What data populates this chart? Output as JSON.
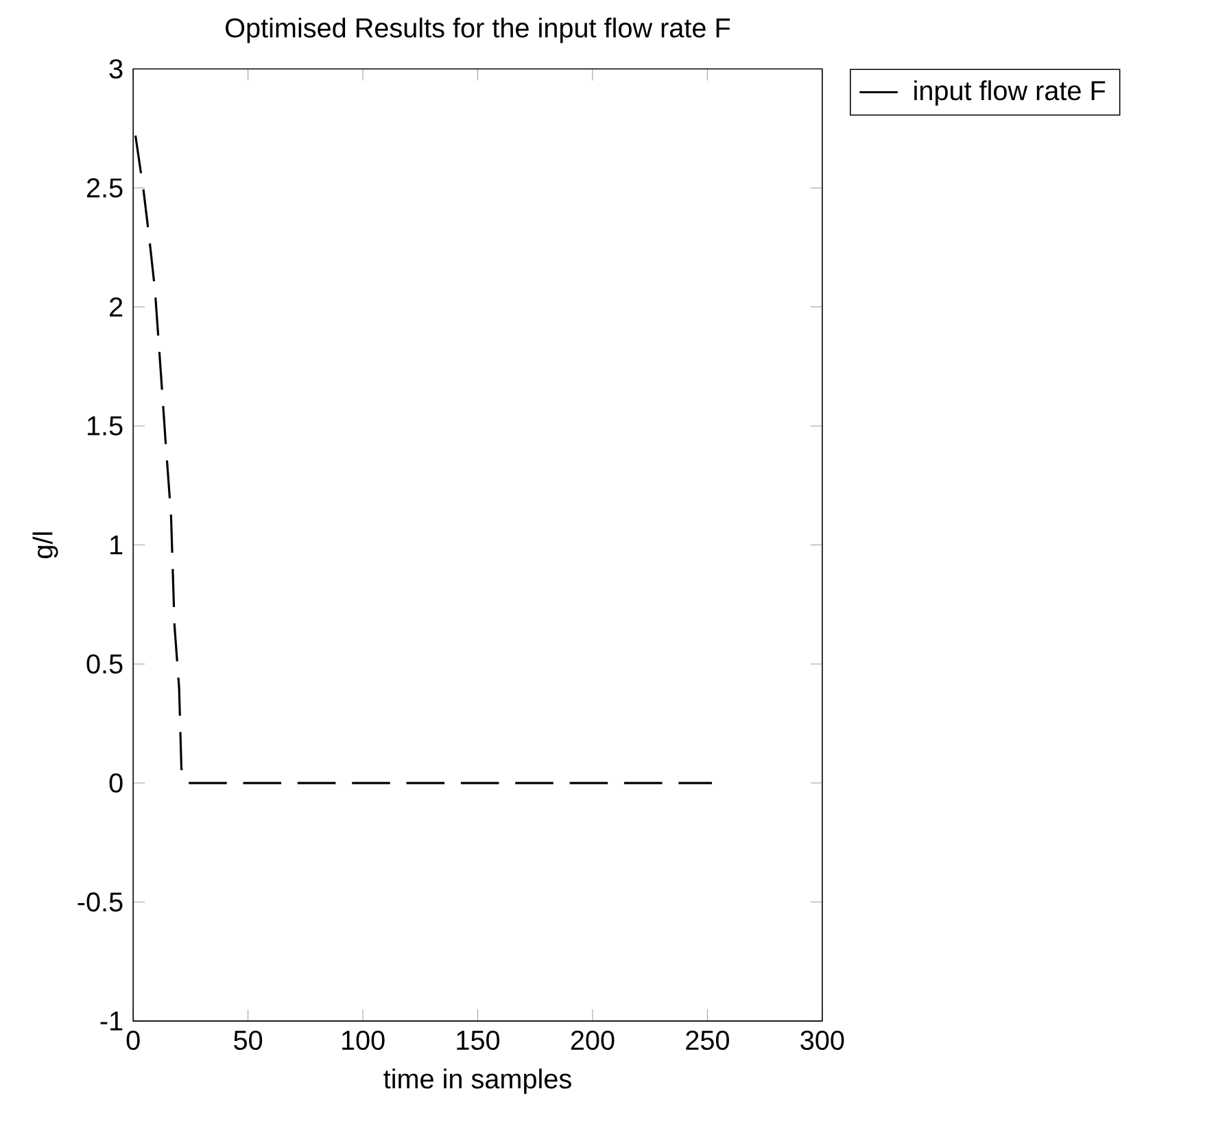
{
  "chart_data": {
    "type": "line",
    "title": "Optimised Results for the input flow rate F",
    "xlabel": "time in samples",
    "ylabel": "g/l",
    "series": [
      {
        "name": "input flow rate F",
        "color": "#000000",
        "x": [
          1,
          4.5,
          7,
          9.5,
          12,
          14,
          16.5,
          18,
          20,
          21,
          23,
          100,
          200,
          252
        ],
        "values": [
          2.72,
          2.49,
          2.29,
          2.07,
          1.73,
          1.45,
          1.12,
          0.66,
          0.4,
          0.06,
          0,
          0,
          0,
          0
        ]
      }
    ],
    "xlim": [
      0,
      300
    ],
    "ylim": [
      -1,
      3
    ],
    "xticks": [
      0,
      50,
      100,
      150,
      200,
      250,
      300
    ],
    "yticks": [
      -1,
      -0.5,
      0,
      0.5,
      1,
      1.5,
      2,
      2.5,
      3
    ],
    "legend": "top right",
    "line_style": "dashed",
    "grid": false
  }
}
